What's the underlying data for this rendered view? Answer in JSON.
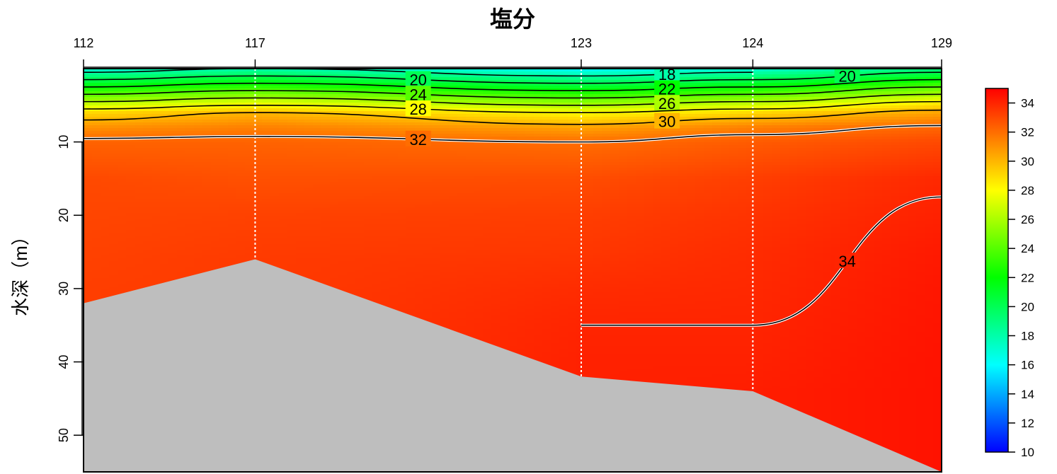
{
  "chart_data": {
    "type": "heatmap",
    "title": "塩分",
    "ylabel": "水深（m）",
    "xlabel": "",
    "stations": [
      "112",
      "117",
      "123",
      "124",
      "129"
    ],
    "station_positions_km": [
      0,
      10,
      29,
      39,
      50
    ],
    "ylim": [
      55,
      0
    ],
    "y_ticks": [
      10,
      20,
      30,
      40,
      50
    ],
    "bottom_depth_m": [
      32,
      26,
      42,
      44,
      55
    ],
    "colorbar": {
      "range": [
        10,
        35
      ],
      "ticks": [
        10,
        12,
        14,
        16,
        18,
        20,
        22,
        24,
        26,
        28,
        30,
        32,
        34
      ],
      "colormap": "rainbow (blue → cyan → green → yellow → red)"
    },
    "contour_levels": [
      18,
      20,
      22,
      24,
      26,
      28,
      30,
      32,
      34
    ],
    "contour_labels": [
      "18",
      "20",
      "20",
      "22",
      "24",
      "26",
      "28",
      "30",
      "32",
      "34"
    ],
    "salinity_profiles": [
      {
        "station": "112",
        "depth_m": [
          0,
          1,
          2,
          3,
          4,
          5,
          6,
          8,
          10,
          15,
          20,
          25,
          30,
          32
        ],
        "salinity": [
          17,
          19,
          21,
          23,
          25,
          27,
          29,
          31,
          32.3,
          33.0,
          33.1,
          33.2,
          33.3,
          33.3
        ]
      },
      {
        "station": "117",
        "depth_m": [
          0,
          1,
          2,
          3,
          4,
          5,
          6,
          8,
          10,
          15,
          20,
          26
        ],
        "salinity": [
          18,
          20,
          22,
          24,
          26,
          28,
          30,
          31.5,
          32.3,
          32.8,
          33.2,
          33.4
        ]
      },
      {
        "station": "123",
        "depth_m": [
          0,
          1,
          2,
          3,
          4,
          5,
          6,
          8,
          10,
          15,
          20,
          25,
          30,
          35,
          40,
          42
        ],
        "salinity": [
          16,
          18,
          20,
          22,
          24,
          26,
          28,
          30.5,
          32.0,
          32.9,
          33.3,
          33.5,
          33.8,
          34.0,
          34.1,
          34.1
        ]
      },
      {
        "station": "124",
        "depth_m": [
          0,
          1,
          2,
          3,
          4,
          5,
          6,
          8,
          10,
          15,
          20,
          25,
          30,
          35,
          40,
          44
        ],
        "salinity": [
          17,
          19,
          21,
          23,
          25,
          27,
          29,
          31.5,
          32.5,
          33.3,
          33.6,
          33.8,
          33.9,
          34.0,
          34.1,
          34.2
        ]
      },
      {
        "station": "129",
        "depth_m": [
          0,
          1,
          2,
          3,
          4,
          5,
          6,
          8,
          10,
          15,
          20,
          25,
          30,
          40,
          55
        ],
        "salinity": [
          19,
          21,
          23,
          25,
          27,
          29,
          30.5,
          32.2,
          33.0,
          33.9,
          34.1,
          34.3,
          34.4,
          34.5,
          34.5
        ]
      }
    ]
  }
}
